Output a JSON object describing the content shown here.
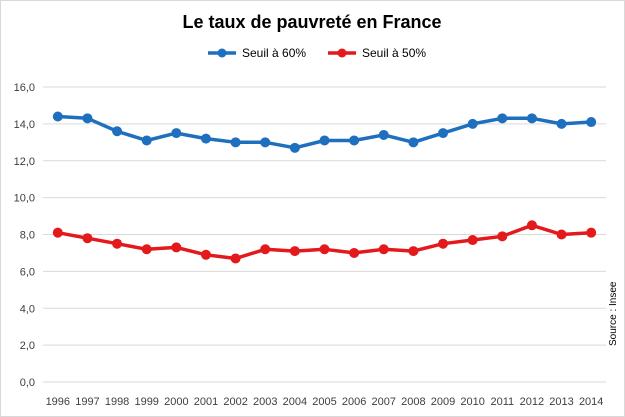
{
  "chart_data": {
    "type": "line",
    "title": "Le taux de pauvreté  en France",
    "x": [
      "1996",
      "1997",
      "1998",
      "1999",
      "2000",
      "2001",
      "2002",
      "2003",
      "2004",
      "2005",
      "2006",
      "2007",
      "2008",
      "2009",
      "2010",
      "2011",
      "2012",
      "2013",
      "2014"
    ],
    "ylim": [
      0,
      16
    ],
    "yticks": [
      "0,0",
      "2,0",
      "4,0",
      "6,0",
      "8,0",
      "10,0",
      "12,0",
      "14,0",
      "16,0"
    ],
    "grid": "horizontal",
    "legend_position": "top",
    "series": [
      {
        "name": "Seuil à 60%",
        "color": "#1f6fbf",
        "values": [
          14.4,
          14.3,
          13.6,
          13.1,
          13.5,
          13.2,
          13.0,
          13.0,
          12.7,
          13.1,
          13.1,
          13.4,
          13.0,
          13.5,
          14.0,
          14.3,
          14.3,
          14.0,
          14.1
        ]
      },
      {
        "name": "Seuil à 50%",
        "color": "#e3191c",
        "values": [
          8.1,
          7.8,
          7.5,
          7.2,
          7.3,
          6.9,
          6.7,
          7.2,
          7.1,
          7.2,
          7.0,
          7.2,
          7.1,
          7.5,
          7.7,
          7.9,
          8.5,
          8.0,
          8.1
        ]
      }
    ],
    "source": "Source : Insee"
  }
}
